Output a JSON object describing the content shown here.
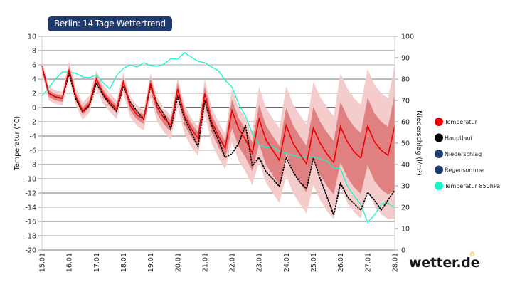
{
  "chart_data": {
    "type": "line",
    "title": "Berlin: 14-Tage Wettertrend",
    "ylabel": "Temperatur (°C)",
    "y2label": "Niederschlag (l/m²)",
    "ylim": [
      -20,
      10
    ],
    "y2lim": [
      0,
      100
    ],
    "yticks": [
      10,
      8,
      6,
      4,
      2,
      0,
      -2,
      -4,
      -6,
      -8,
      -10,
      -12,
      -14,
      -16,
      -18,
      -20
    ],
    "y2ticks": [
      100,
      90,
      80,
      70,
      60,
      50,
      40,
      30,
      20,
      10,
      0
    ],
    "xticks": [
      "15.01",
      "16.01",
      "17.01",
      "18.01",
      "19.01",
      "20.01",
      "21.01",
      "22.01",
      "23.01",
      "24.01",
      "25.01",
      "26.01",
      "27.01",
      "28.01"
    ],
    "x_step": "6h",
    "grid": true,
    "legend_position": "right",
    "legend": [
      {
        "name": "Temperatur",
        "color": "#ee0000"
      },
      {
        "name": "Hauptlauf",
        "color": "#000000"
      },
      {
        "name": "Niederschlag",
        "color": "#1f3a6e"
      },
      {
        "name": "Regensumme",
        "color": "#1f3a6e"
      },
      {
        "name": "Temperatur 850hPa",
        "color": "#19f5c8"
      }
    ],
    "series": [
      {
        "name": "Temperatur",
        "color": "#ee0000",
        "values": [
          5.8,
          2.0,
          1.5,
          1.3,
          5.3,
          1.5,
          -0.5,
          0.5,
          4.0,
          2.0,
          0.8,
          -0.2,
          3.6,
          0.3,
          -1.0,
          -1.6,
          3.4,
          0.0,
          -1.5,
          -2.5,
          2.6,
          -1.2,
          -3.0,
          -4.3,
          2.0,
          -2.0,
          -4.0,
          -5.7,
          -0.4,
          -3.0,
          -4.5,
          -6.4,
          -1.6,
          -4.5,
          -6.0,
          -7.4,
          -2.5,
          -5.0,
          -6.5,
          -7.9,
          -2.9,
          -5.0,
          -6.5,
          -7.7,
          -2.7,
          -4.8,
          -6.2,
          -7.1,
          -2.6,
          -4.8,
          -6.0,
          -6.7,
          -2.6
        ]
      },
      {
        "name": "Hauptlauf",
        "color": "#000000",
        "values": [
          5.8,
          2.0,
          1.5,
          1.3,
          4.8,
          1.2,
          -0.6,
          0.3,
          3.4,
          1.8,
          0.5,
          -0.5,
          3.0,
          0.8,
          -0.5,
          -1.6,
          3.0,
          0.5,
          -1.0,
          -3.0,
          1.5,
          -1.5,
          -3.5,
          -5.5,
          1.0,
          -2.5,
          -4.5,
          -7.0,
          -6.5,
          -5.0,
          -2.5,
          -8.2,
          -7.0,
          -9.0,
          -10.0,
          -11.1,
          -7.0,
          -9.0,
          -10.5,
          -11.4,
          -7.1,
          -10.0,
          -12.5,
          -15.1,
          -10.6,
          -12.5,
          -13.5,
          -14.4,
          -11.9,
          -13.0,
          -14.4,
          -13.0,
          -11.6
        ]
      },
      {
        "name": "Temperatur 850hPa",
        "color": "#19f5c8",
        "values": [
          1.6,
          2.8,
          4.0,
          5.0,
          5.0,
          4.8,
          4.3,
          4.2,
          4.6,
          3.5,
          2.6,
          4.5,
          5.5,
          6.0,
          5.7,
          6.3,
          5.9,
          5.8,
          6.1,
          6.9,
          6.8,
          7.7,
          7.1,
          6.5,
          6.3,
          5.7,
          5.2,
          3.8,
          2.9,
          0.5,
          -1.2,
          -3.6,
          -5.2,
          -5.6,
          -5.5,
          -6.1,
          -6.4,
          -6.7,
          -7.0,
          -6.9,
          -6.9,
          -7.2,
          -7.5,
          -8.5,
          -8.6,
          -11.0,
          -12.4,
          -13.6,
          -16.1,
          -15.1,
          -13.6,
          -13.4,
          -14.1
        ]
      }
    ],
    "bands": {
      "inner": {
        "color": "#e08080",
        "high": [
          6.2,
          2.4,
          1.9,
          1.7,
          5.8,
          2.0,
          0.0,
          1.0,
          4.5,
          2.5,
          1.3,
          0.3,
          4.2,
          0.9,
          -0.4,
          -1.0,
          4.1,
          0.7,
          -0.8,
          -1.8,
          3.4,
          -0.4,
          -2.2,
          -3.5,
          3.0,
          -1.0,
          -3.0,
          -4.7,
          1.1,
          -1.5,
          -3.0,
          -4.9,
          0.4,
          -2.5,
          -4.0,
          -5.4,
          0.0,
          -2.5,
          -4.0,
          -5.4,
          0.1,
          -2.0,
          -3.5,
          -4.7,
          0.8,
          -1.3,
          -2.7,
          -3.6,
          1.4,
          -0.8,
          -2.0,
          -2.7,
          1.9
        ],
        "low": [
          5.3,
          1.5,
          1.0,
          0.8,
          4.8,
          1.0,
          -1.0,
          0.0,
          3.4,
          1.4,
          0.2,
          -0.8,
          2.9,
          -0.4,
          -1.7,
          -2.3,
          2.5,
          -0.9,
          -2.4,
          -3.4,
          1.4,
          -2.4,
          -4.2,
          -5.5,
          0.5,
          -3.5,
          -5.5,
          -7.2,
          -2.9,
          -5.5,
          -7.0,
          -8.9,
          -5.1,
          -8.0,
          -9.5,
          -10.9,
          -6.5,
          -9.0,
          -10.5,
          -11.9,
          -7.4,
          -9.5,
          -11.0,
          -12.2,
          -7.7,
          -9.8,
          -11.2,
          -12.1,
          -8.1,
          -10.3,
          -11.5,
          -12.2,
          -11.6
        ]
      },
      "outer": {
        "color": "#f4cccc",
        "high": [
          6.7,
          2.9,
          2.4,
          2.2,
          6.5,
          2.7,
          0.7,
          1.7,
          5.2,
          3.2,
          2.0,
          1.0,
          4.9,
          1.6,
          0.3,
          -0.3,
          4.8,
          1.4,
          -0.1,
          -1.1,
          4.2,
          0.4,
          -1.4,
          -2.7,
          4.0,
          0.0,
          -2.0,
          -3.7,
          2.6,
          0.0,
          -1.5,
          -3.4,
          2.9,
          0.0,
          -1.5,
          -2.9,
          3.0,
          0.5,
          -1.0,
          -2.4,
          3.6,
          1.5,
          0.0,
          -1.2,
          4.8,
          2.7,
          1.3,
          0.4,
          5.4,
          3.2,
          2.0,
          1.3,
          5.9
        ],
        "low": [
          4.8,
          1.0,
          0.5,
          0.3,
          4.1,
          0.3,
          -1.7,
          -0.7,
          2.6,
          0.6,
          -0.6,
          -1.6,
          2.0,
          -1.3,
          -2.6,
          -3.2,
          1.4,
          -2.0,
          -3.5,
          -4.5,
          0.1,
          -3.7,
          -5.5,
          -6.8,
          -1.0,
          -5.0,
          -7.0,
          -8.7,
          -4.9,
          -7.5,
          -9.0,
          -10.9,
          -7.6,
          -10.5,
          -12.0,
          -13.4,
          -9.5,
          -12.0,
          -13.5,
          -14.9,
          -10.9,
          -13.0,
          -14.5,
          -15.7,
          -11.2,
          -13.3,
          -14.7,
          -15.6,
          -11.6,
          -13.8,
          -15.0,
          -15.7,
          -15.6
        ]
      }
    }
  },
  "brand": {
    "logo_text": "wetter.de"
  }
}
